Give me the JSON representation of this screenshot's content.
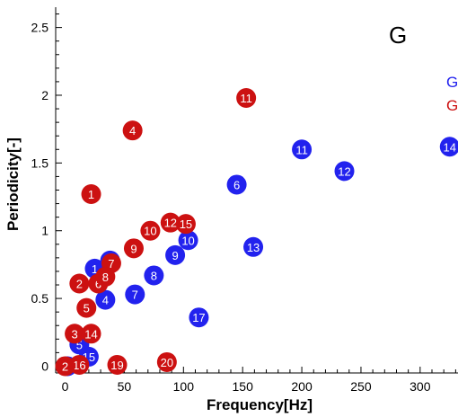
{
  "chart_data": {
    "type": "scatter",
    "panel_label": "G",
    "xlabel": "Frequency[Hz]",
    "ylabel": "Periodicity[-]",
    "xlim": [
      -8,
      332
    ],
    "ylim": [
      -0.05,
      2.65
    ],
    "x_ticks": [
      0,
      50,
      100,
      150,
      200,
      250,
      300
    ],
    "y_ticks": [
      0,
      0.5,
      1,
      1.5,
      2,
      2.5
    ],
    "x_tick_labels": [
      "0",
      "50",
      "100",
      "150",
      "200",
      "250",
      "300"
    ],
    "y_tick_labels": [
      "0",
      "0.5",
      "1",
      "1.5",
      "2",
      "2.5"
    ],
    "legend_placement": "right (clipped)",
    "series": [
      {
        "name": "G",
        "color": "#2222ee",
        "points": [
          {
            "label": "1",
            "x": 25,
            "y": 0.72
          },
          {
            "label": "2",
            "x": 2,
            "y": 0.0
          },
          {
            "label": "3",
            "x": 38,
            "y": 0.78
          },
          {
            "label": "4",
            "x": 34,
            "y": 0.49
          },
          {
            "label": "5",
            "x": 12,
            "y": 0.16
          },
          {
            "label": "6",
            "x": 145,
            "y": 1.34
          },
          {
            "label": "7",
            "x": 59,
            "y": 0.53
          },
          {
            "label": "8",
            "x": 75,
            "y": 0.67
          },
          {
            "label": "9",
            "x": 93,
            "y": 0.82
          },
          {
            "label": "10",
            "x": 104,
            "y": 0.93
          },
          {
            "label": "11",
            "x": 200,
            "y": 1.6
          },
          {
            "label": "12",
            "x": 236,
            "y": 1.44
          },
          {
            "label": "13",
            "x": 159,
            "y": 0.88
          },
          {
            "label": "14",
            "x": 325,
            "y": 1.62
          },
          {
            "label": "15",
            "x": 20,
            "y": 0.07
          },
          {
            "label": "17",
            "x": 113,
            "y": 0.36
          }
        ]
      },
      {
        "name": "G",
        "color": "#cc1111",
        "points": [
          {
            "label": "1",
            "x": 22,
            "y": 1.27
          },
          {
            "label": "2",
            "x": 12,
            "y": 0.61
          },
          {
            "label": "3",
            "x": 8,
            "y": 0.24
          },
          {
            "label": "4",
            "x": 57,
            "y": 1.74
          },
          {
            "label": "5",
            "x": 18,
            "y": 0.43
          },
          {
            "label": "6",
            "x": 28,
            "y": 0.61
          },
          {
            "label": "7",
            "x": 39,
            "y": 0.76
          },
          {
            "label": "8",
            "x": 34,
            "y": 0.66
          },
          {
            "label": "9",
            "x": 58,
            "y": 0.87
          },
          {
            "label": "10",
            "x": 72,
            "y": 1.0
          },
          {
            "label": "11",
            "x": 153,
            "y": 1.98
          },
          {
            "label": "12",
            "x": 89,
            "y": 1.06
          },
          {
            "label": "14",
            "x": 22,
            "y": 0.24
          },
          {
            "label": "15",
            "x": 102,
            "y": 1.05
          },
          {
            "label": "16",
            "x": 12,
            "y": 0.01
          },
          {
            "label": "19",
            "x": 44,
            "y": 0.01
          },
          {
            "label": "20",
            "x": 86,
            "y": 0.03
          },
          {
            "label": "2",
            "x": 0,
            "y": 0.0
          }
        ]
      }
    ]
  }
}
